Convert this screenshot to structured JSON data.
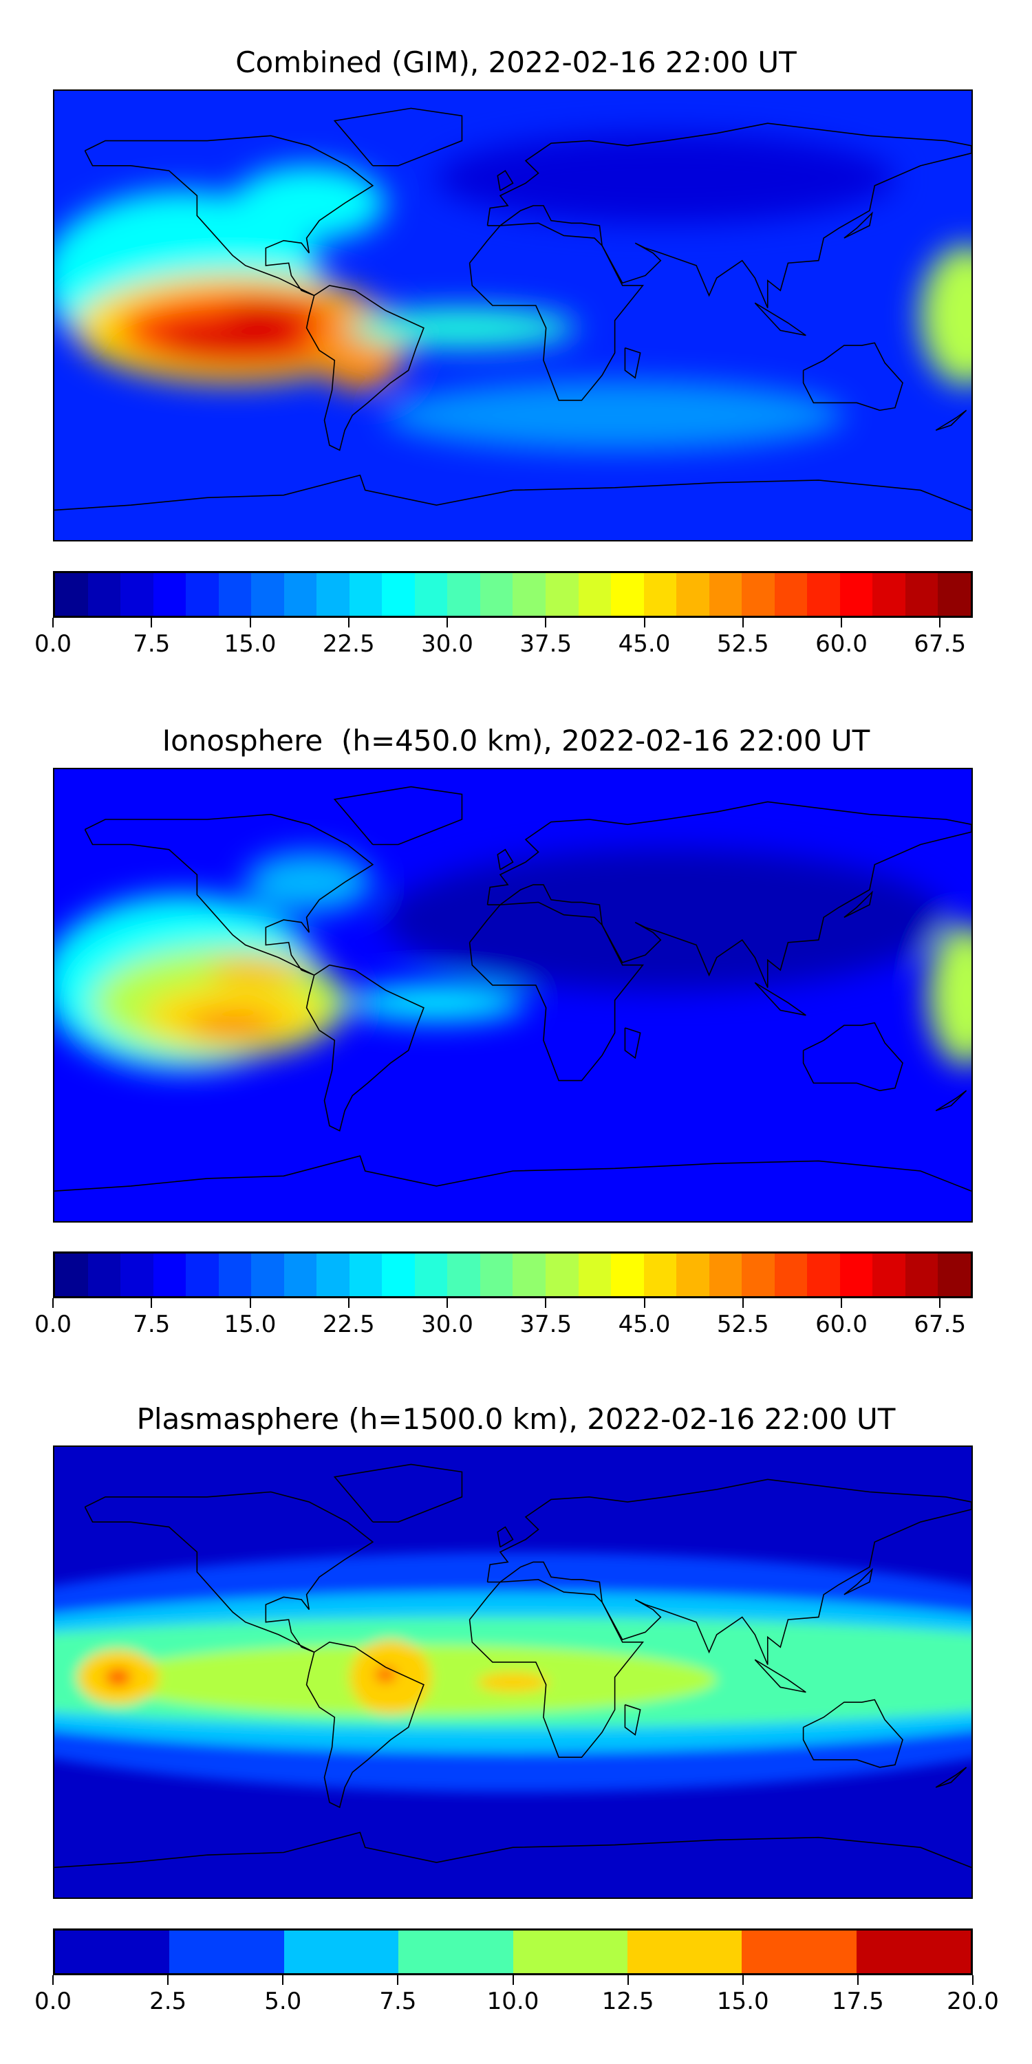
{
  "chart_data": [
    {
      "type": "heatmap",
      "title": "Combined (GIM), 2022-02-16 22:00 UT",
      "projection": "plate-carree global map with coastlines",
      "colormap": "jet",
      "vmin": 0,
      "vmax": 70,
      "levels": 28,
      "colorbar_ticks": [
        "0.0",
        "7.5",
        "15.0",
        "22.5",
        "30.0",
        "37.5",
        "45.0",
        "52.5",
        "60.0",
        "67.5"
      ],
      "background_value": 12,
      "features": [
        {
          "lon": -130,
          "lat": 15,
          "rlon": 55,
          "rlat": 35,
          "value": 25
        },
        {
          "lon": -110,
          "lat": -5,
          "rlon": 62,
          "rlat": 22,
          "value": 45
        },
        {
          "lon": -105,
          "lat": -6,
          "rlon": 50,
          "rlat": 16,
          "value": 57
        },
        {
          "lon": -110,
          "lat": -10,
          "rlon": 30,
          "rlat": 8,
          "value": 64
        },
        {
          "lon": -95,
          "lat": 2,
          "rlon": 18,
          "rlat": 5,
          "value": 64
        },
        {
          "lon": -60,
          "lat": -12,
          "rlon": 18,
          "rlat": 18,
          "value": 52
        },
        {
          "lon": -20,
          "lat": -5,
          "rlon": 45,
          "rlat": 8,
          "value": 28
        },
        {
          "lon": 178,
          "lat": 0,
          "rlon": 18,
          "rlat": 28,
          "value": 38
        },
        {
          "lon": -80,
          "lat": 45,
          "rlon": 30,
          "rlat": 15,
          "value": 25
        },
        {
          "lon": 40,
          "lat": -40,
          "rlon": 90,
          "rlat": 14,
          "value": 18
        },
        {
          "lon": 60,
          "lat": 55,
          "rlon": 90,
          "rlat": 18,
          "value": 6
        }
      ]
    },
    {
      "type": "heatmap",
      "title": "Ionosphere  (h=450.0 km), 2022-02-16 22:00 UT",
      "projection": "plate-carree global map with coastlines",
      "colormap": "jet",
      "vmin": 0,
      "vmax": 70,
      "levels": 28,
      "colorbar_ticks": [
        "0.0",
        "7.5",
        "15.0",
        "22.5",
        "30.0",
        "37.5",
        "45.0",
        "52.5",
        "60.0",
        "67.5"
      ],
      "background_value": 9,
      "features": [
        {
          "lon": -130,
          "lat": 5,
          "rlon": 55,
          "rlat": 35,
          "value": 25
        },
        {
          "lon": -115,
          "lat": -3,
          "rlon": 50,
          "rlat": 22,
          "value": 38
        },
        {
          "lon": -110,
          "lat": -8,
          "rlon": 35,
          "rlat": 12,
          "value": 47
        },
        {
          "lon": -100,
          "lat": 10,
          "rlon": 20,
          "rlat": 5,
          "value": 48
        },
        {
          "lon": -110,
          "lat": -12,
          "rlon": 18,
          "rlat": 4,
          "value": 56
        },
        {
          "lon": -30,
          "lat": -3,
          "rlon": 35,
          "rlat": 7,
          "value": 26
        },
        {
          "lon": 178,
          "lat": 0,
          "rlon": 15,
          "rlat": 28,
          "value": 38
        },
        {
          "lon": 60,
          "lat": 30,
          "rlon": 110,
          "rlat": 28,
          "value": 3
        },
        {
          "lon": -80,
          "lat": 45,
          "rlon": 25,
          "rlat": 12,
          "value": 22
        }
      ]
    },
    {
      "type": "heatmap",
      "title": "Plasmasphere (h=1500.0 km), 2022-02-16 22:00 UT",
      "projection": "plate-carree global map with coastlines",
      "colormap": "jet-discrete",
      "vmin": 0,
      "vmax": 20,
      "levels": 8,
      "level_colors": [
        "#0000c8",
        "#0040ff",
        "#00c4ff",
        "#4bffae",
        "#b2ff43",
        "#ffd000",
        "#ff5900",
        "#c40000"
      ],
      "colorbar_ticks": [
        "0.0",
        "2.5",
        "5.0",
        "7.5",
        "10.0",
        "12.5",
        "15.0",
        "17.5",
        "20.0"
      ],
      "background_value": 1,
      "features": [
        {
          "lon": 0,
          "lat": 0,
          "rlon": 260,
          "rlat": 48,
          "value": 4
        },
        {
          "lon": 0,
          "lat": 0,
          "rlon": 260,
          "rlat": 32,
          "value": 6
        },
        {
          "lon": 0,
          "lat": 0,
          "rlon": 260,
          "rlat": 22,
          "value": 9
        },
        {
          "lon": -40,
          "lat": -3,
          "rlon": 120,
          "rlat": 14,
          "value": 11
        },
        {
          "lon": -155,
          "lat": -2,
          "rlon": 16,
          "rlat": 11,
          "value": 13
        },
        {
          "lon": -48,
          "lat": -2,
          "rlon": 16,
          "rlat": 15,
          "value": 13
        },
        {
          "lon": 0,
          "lat": -4,
          "rlon": 14,
          "rlat": 4,
          "value": 13
        },
        {
          "lon": -155,
          "lat": -2,
          "rlon": 5,
          "rlat": 3.5,
          "value": 16
        },
        {
          "lon": -50,
          "lat": -1,
          "rlon": 4,
          "rlat": 3,
          "value": 16
        }
      ]
    }
  ]
}
